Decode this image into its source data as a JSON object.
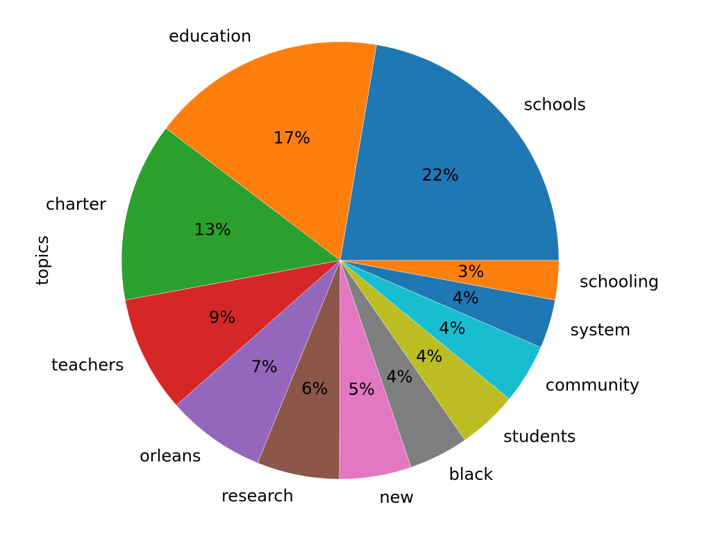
{
  "chart_data": {
    "type": "pie",
    "ylabel": "topics",
    "categories": [
      "schools",
      "education",
      "charter",
      "teachers",
      "orleans",
      "research",
      "new",
      "black",
      "students",
      "community",
      "system",
      "schooling"
    ],
    "values": [
      22.3,
      17.3,
      13.2,
      8.6,
      7.3,
      6.1,
      5.3,
      4.4,
      4.4,
      4.4,
      3.6,
      2.9
    ],
    "value_labels": [
      "22%",
      "17%",
      "13%",
      "9%",
      "7%",
      "6%",
      "5%",
      "4%",
      "4%",
      "4%",
      "4%",
      "3%"
    ],
    "colors": [
      "#1f77b4",
      "#ff7f0e",
      "#2ca02c",
      "#d62728",
      "#9467bd",
      "#8c564b",
      "#e377c2",
      "#7f7f7f",
      "#bcbd22",
      "#17becf",
      "#1f77b4",
      "#ff7f0e"
    ],
    "start_angle": 0,
    "counterclock": true
  }
}
